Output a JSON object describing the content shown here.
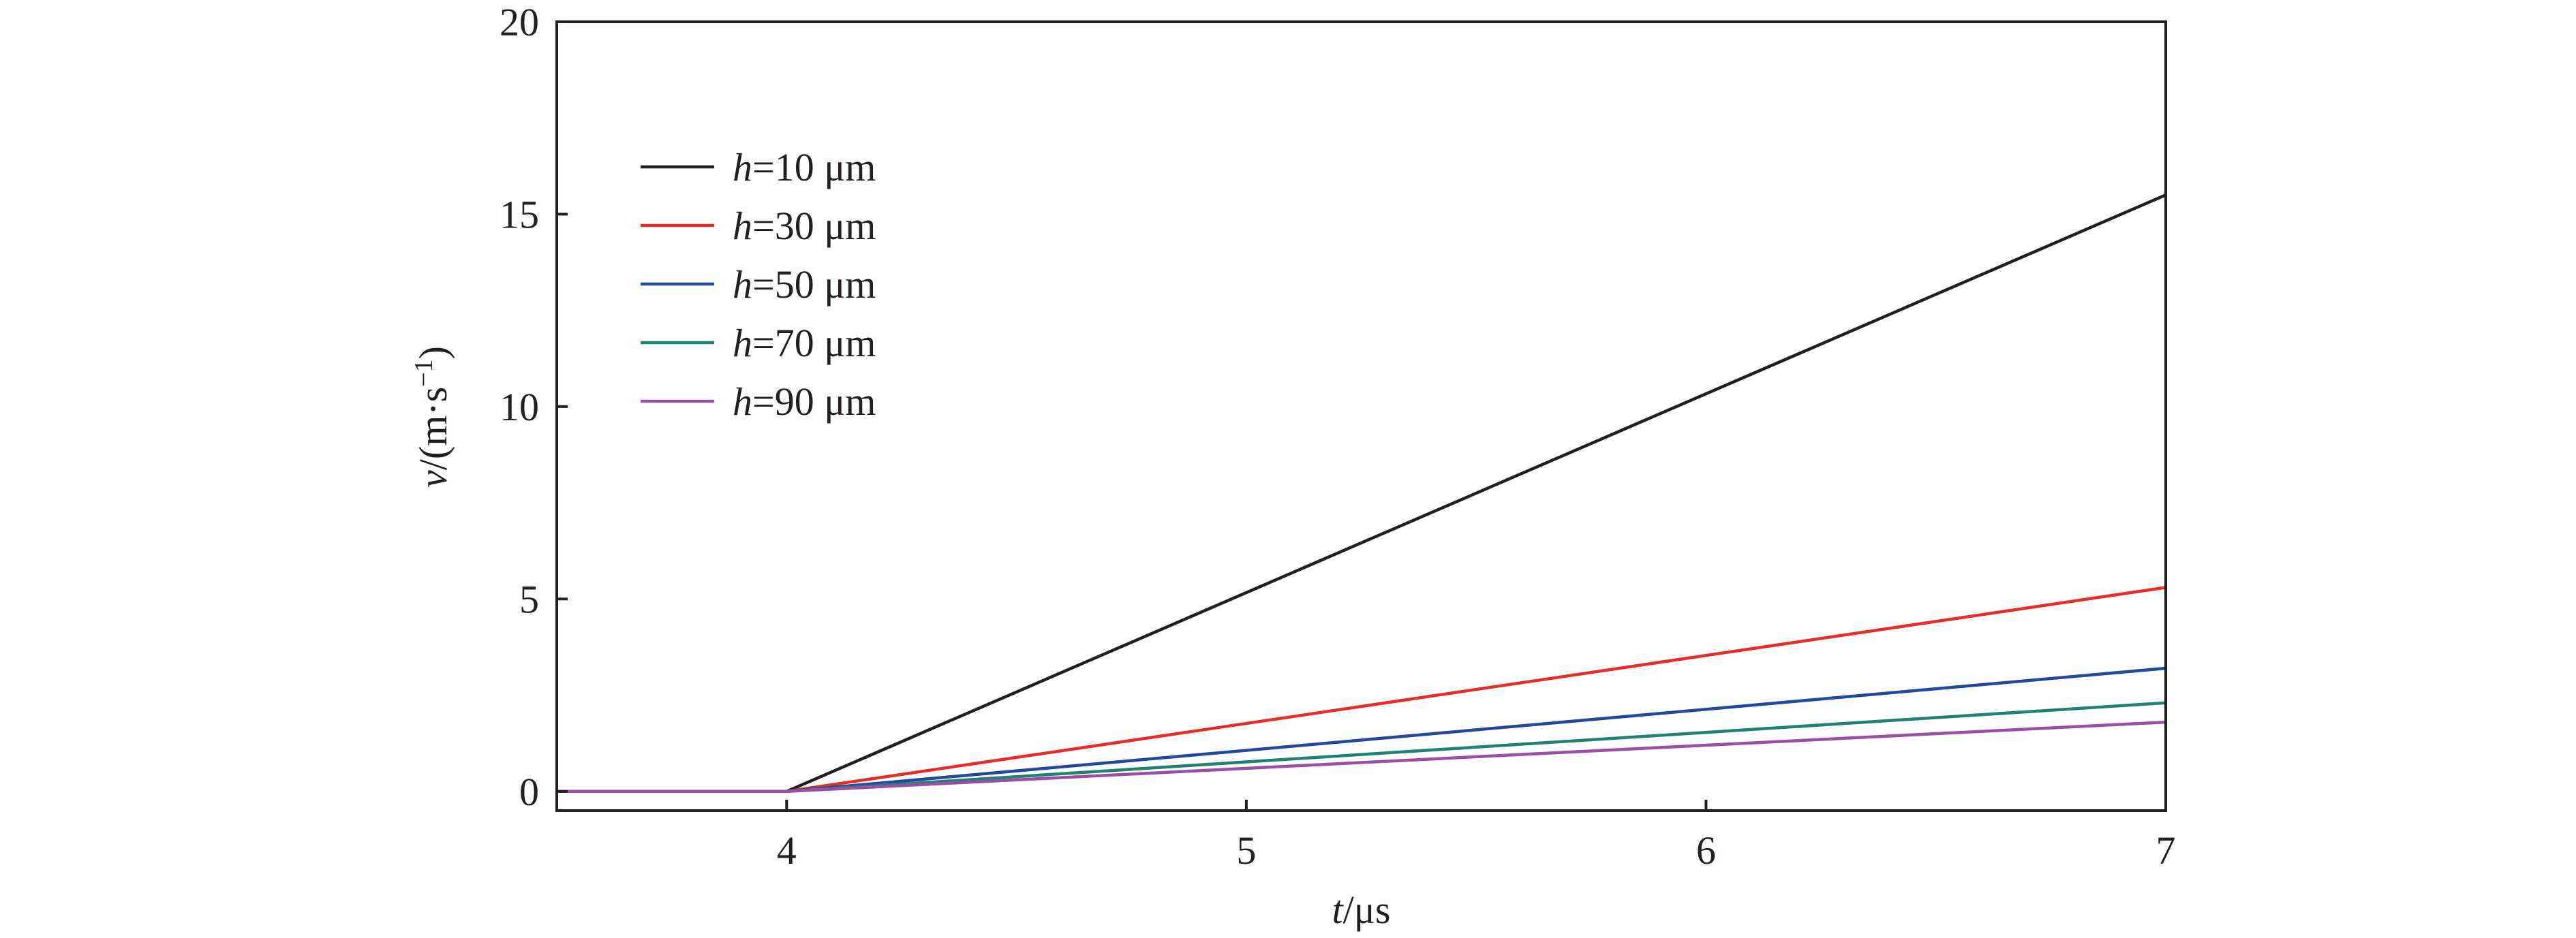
{
  "chart_data": {
    "type": "line",
    "title": "",
    "xlabel": {
      "var": "t",
      "unit": "/μs"
    },
    "ylabel": {
      "var": "v",
      "unit_prefix": "/(m·s",
      "unit_sup": "−1",
      "unit_suffix": ")"
    },
    "xlim": [
      3.5,
      7
    ],
    "ylim": [
      -0.5,
      20
    ],
    "x_ticks": [
      4,
      5,
      6,
      7
    ],
    "y_ticks": [
      0,
      5,
      10,
      15,
      20
    ],
    "x_tick_labels": [
      "4",
      "5",
      "6",
      "7"
    ],
    "y_tick_labels": [
      "0",
      "5",
      "10",
      "15",
      "20"
    ],
    "grid": false,
    "legend_position": "top-left",
    "series": [
      {
        "name": "h=10 μm",
        "label_var": "h",
        "label_rest": "=10 μm",
        "color": "#231f20",
        "x": [
          3.5,
          4,
          7
        ],
        "y": [
          0,
          0,
          15.5
        ]
      },
      {
        "name": "h=30 μm",
        "label_var": "h",
        "label_rest": "=30 μm",
        "color": "#e0302b",
        "x": [
          3.5,
          4,
          7
        ],
        "y": [
          0,
          0,
          5.3
        ]
      },
      {
        "name": "h=50 μm",
        "label_var": "h",
        "label_rest": "=50 μm",
        "color": "#224a9a",
        "x": [
          3.5,
          4,
          7
        ],
        "y": [
          0,
          0,
          3.2
        ]
      },
      {
        "name": "h=70 μm",
        "label_var": "h",
        "label_rest": "=70 μm",
        "color": "#228272",
        "x": [
          3.5,
          4,
          7
        ],
        "y": [
          0,
          0,
          2.3
        ]
      },
      {
        "name": "h=90 μm",
        "label_var": "h",
        "label_rest": "=90 μm",
        "color": "#9b4ea6",
        "x": [
          3.5,
          4,
          7
        ],
        "y": [
          0,
          0,
          1.8
        ]
      }
    ]
  }
}
